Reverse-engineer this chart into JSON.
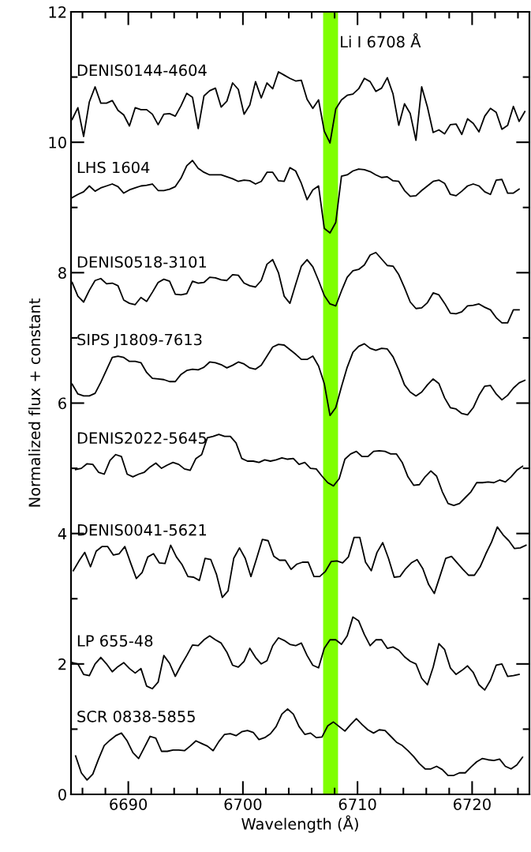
{
  "chart_data": {
    "type": "line",
    "xlabel": "Wavelength (Å)",
    "ylabel": "Normalized flux + constant",
    "x": [
      6685.1,
      6685.6,
      6686.1,
      6686.6,
      6687.1,
      6687.6,
      6688.1,
      6688.6,
      6689.1,
      6689.6,
      6690.1,
      6690.6,
      6691.1,
      6691.6,
      6692.1,
      6692.6,
      6693.1,
      6693.6,
      6694.1,
      6694.6,
      6695.1,
      6695.6,
      6696.1,
      6696.6,
      6697.1,
      6697.6,
      6698.1,
      6698.6,
      6699.1,
      6699.6,
      6700.1,
      6700.6,
      6701.1,
      6701.6,
      6702.1,
      6702.6,
      6703.1,
      6703.6,
      6704.1,
      6704.6,
      6705.1,
      6705.6,
      6706.1,
      6706.6,
      6707.1,
      6707.6,
      6708.1,
      6708.6,
      6709.1,
      6709.6,
      6710.1,
      6710.6,
      6711.1,
      6711.6,
      6712.1,
      6712.6,
      6713.1,
      6713.6,
      6714.1,
      6714.6,
      6715.1,
      6715.6,
      6716.1,
      6716.6,
      6717.1,
      6717.6,
      6718.1,
      6718.6,
      6719.1,
      6719.6,
      6720.1,
      6720.6,
      6721.1,
      6721.6,
      6722.1,
      6722.6,
      6723.1,
      6723.6,
      6724.1,
      6724.6
    ],
    "series": [
      {
        "name": "DENIS0144-4604",
        "color": "#000000",
        "values": [
          10.35,
          10.53,
          10.09,
          10.62,
          10.85,
          10.6,
          10.6,
          10.64,
          10.49,
          10.42,
          10.25,
          10.53,
          10.5,
          10.5,
          10.43,
          10.27,
          10.43,
          10.44,
          10.4,
          10.56,
          10.75,
          10.69,
          10.21,
          10.71,
          10.79,
          10.83,
          10.54,
          10.63,
          10.91,
          10.81,
          10.43,
          10.57,
          10.93,
          10.68,
          10.91,
          10.82,
          11.08,
          11.03,
          10.98,
          10.94,
          10.95,
          10.66,
          10.52,
          10.65,
          10.17,
          9.99,
          10.51,
          10.65,
          10.72,
          10.74,
          10.82,
          10.98,
          10.93,
          10.78,
          10.83,
          10.99,
          10.74,
          10.26,
          10.59,
          10.44,
          10.03,
          10.85,
          10.54,
          10.15,
          10.19,
          10.13,
          10.27,
          10.28,
          10.12,
          10.36,
          10.29,
          10.16,
          10.4,
          10.52,
          10.46,
          10.2,
          10.26,
          10.55,
          10.32,
          10.47
        ]
      },
      {
        "name": "LHS 1604",
        "color": "#000000",
        "values": [
          9.15,
          9.2,
          9.24,
          9.33,
          9.25,
          9.3,
          9.33,
          9.36,
          9.32,
          9.22,
          9.27,
          9.3,
          9.33,
          9.34,
          9.36,
          9.26,
          9.26,
          9.28,
          9.32,
          9.45,
          9.64,
          9.72,
          9.6,
          9.54,
          9.5,
          9.5,
          9.5,
          9.47,
          9.44,
          9.4,
          9.42,
          9.41,
          9.36,
          9.4,
          9.54,
          9.54,
          9.41,
          9.4,
          9.61,
          9.56,
          9.37,
          9.12,
          9.27,
          9.33,
          8.68,
          8.61,
          8.77,
          9.48,
          9.5,
          9.56,
          9.59,
          9.58,
          9.55,
          9.5,
          9.46,
          9.47,
          9.41,
          9.4,
          9.26,
          9.17,
          9.18,
          9.26,
          9.33,
          9.4,
          9.42,
          9.37,
          9.2,
          9.18,
          9.25,
          9.33,
          9.36,
          9.33,
          9.24,
          9.2,
          9.42,
          9.43,
          9.22,
          9.22,
          9.28,
          null
        ]
      },
      {
        "name": "DENIS0518-3101",
        "color": "#000000",
        "values": [
          7.85,
          7.64,
          7.55,
          7.73,
          7.88,
          7.91,
          7.83,
          7.84,
          7.8,
          7.58,
          7.53,
          7.51,
          7.62,
          7.56,
          7.7,
          7.85,
          7.9,
          7.87,
          7.67,
          7.66,
          7.68,
          7.87,
          7.84,
          7.85,
          7.93,
          7.92,
          7.89,
          7.88,
          7.97,
          7.96,
          7.84,
          7.8,
          7.78,
          7.88,
          8.13,
          8.2,
          8.0,
          7.64,
          7.53,
          7.82,
          8.1,
          8.2,
          8.09,
          7.88,
          7.65,
          7.52,
          7.49,
          7.72,
          7.93,
          8.03,
          8.05,
          8.12,
          8.27,
          8.31,
          8.21,
          8.11,
          8.1,
          7.97,
          7.77,
          7.55,
          7.45,
          7.46,
          7.54,
          7.69,
          7.66,
          7.53,
          7.38,
          7.37,
          7.4,
          7.49,
          7.5,
          7.52,
          7.47,
          7.43,
          7.31,
          7.23,
          7.23,
          7.43,
          7.43,
          null
        ]
      },
      {
        "name": "SIPS J1809-7613",
        "color": "#000000",
        "values": [
          6.29,
          6.14,
          6.11,
          6.11,
          6.15,
          6.32,
          6.51,
          6.7,
          6.72,
          6.7,
          6.64,
          6.64,
          6.62,
          6.47,
          6.38,
          6.37,
          6.36,
          6.33,
          6.33,
          6.44,
          6.5,
          6.52,
          6.51,
          6.55,
          6.63,
          6.62,
          6.59,
          6.54,
          6.58,
          6.63,
          6.6,
          6.54,
          6.52,
          6.58,
          6.72,
          6.86,
          6.9,
          6.89,
          6.82,
          6.75,
          6.67,
          6.67,
          6.72,
          6.57,
          6.3,
          5.81,
          5.93,
          6.25,
          6.55,
          6.78,
          6.87,
          6.91,
          6.84,
          6.81,
          6.84,
          6.83,
          6.71,
          6.51,
          6.28,
          6.17,
          6.11,
          6.17,
          6.28,
          6.37,
          6.3,
          6.08,
          5.93,
          5.91,
          5.84,
          5.82,
          5.93,
          6.12,
          6.26,
          6.27,
          6.14,
          6.05,
          6.12,
          6.23,
          6.31,
          6.35
        ]
      },
      {
        "name": "DENIS2022-5645",
        "color": "#000000",
        "x": [
          6685.4,
          6685.9,
          6686.4,
          6686.9,
          6687.4,
          6687.9,
          6688.4,
          6688.9,
          6689.4,
          6689.9,
          6690.4,
          6690.9,
          6691.4,
          6691.9,
          6692.4,
          6692.9,
          6693.4,
          6693.9,
          6694.4,
          6694.9,
          6695.4,
          6695.9,
          6696.4,
          6696.9,
          6697.4,
          6697.9,
          6698.4,
          6698.9,
          6699.4,
          6699.9,
          6700.4,
          6700.9,
          6701.4,
          6701.9,
          6702.4,
          6702.9,
          6703.4,
          6703.9,
          6704.4,
          6704.9,
          6705.4,
          6705.9,
          6706.4,
          6706.9,
          6707.4,
          6707.9,
          6708.4,
          6708.9,
          6709.4,
          6709.9,
          6710.4,
          6710.9,
          6711.4,
          6711.9,
          6712.4,
          6712.9,
          6713.4,
          6713.9,
          6714.4,
          6714.9,
          6715.4,
          6715.9,
          6716.4,
          6716.9,
          6717.4,
          6717.9,
          6718.4,
          6718.9,
          6719.4,
          6719.9,
          6720.4,
          6720.9,
          6721.4,
          6721.9,
          6722.4,
          6722.9,
          6723.4,
          6723.9,
          6724.4
        ],
        "values": [
          4.98,
          5.0,
          5.07,
          5.06,
          4.94,
          4.91,
          5.12,
          5.21,
          5.18,
          4.91,
          4.87,
          4.91,
          4.94,
          5.02,
          5.08,
          5.0,
          5.05,
          5.09,
          5.06,
          4.99,
          4.97,
          5.15,
          5.21,
          5.47,
          5.49,
          5.52,
          5.49,
          5.49,
          5.39,
          5.15,
          5.11,
          5.11,
          5.09,
          5.13,
          5.11,
          5.13,
          5.16,
          5.14,
          5.15,
          5.06,
          5.09,
          5.0,
          4.99,
          4.88,
          4.78,
          4.73,
          4.84,
          5.14,
          5.22,
          5.26,
          5.18,
          5.18,
          5.26,
          5.27,
          5.26,
          5.22,
          5.22,
          5.09,
          4.87,
          4.74,
          4.75,
          4.87,
          4.96,
          4.88,
          4.64,
          4.46,
          4.43,
          4.46,
          4.55,
          4.64,
          4.78,
          4.78,
          4.79,
          4.78,
          4.82,
          4.79,
          4.87,
          4.97,
          5.03
        ]
      },
      {
        "name": "DENIS0041-5621",
        "color": "#000000",
        "x": [
          6685.2,
          6685.7,
          6686.2,
          6686.7,
          6687.2,
          6687.7,
          6688.2,
          6688.7,
          6689.2,
          6689.7,
          6690.2,
          6690.7,
          6691.2,
          6691.7,
          6692.2,
          6692.7,
          6693.2,
          6693.7,
          6694.2,
          6694.7,
          6695.2,
          6695.7,
          6696.2,
          6696.7,
          6697.2,
          6697.7,
          6698.2,
          6698.7,
          6699.2,
          6699.7,
          6700.2,
          6700.7,
          6701.2,
          6701.7,
          6702.2,
          6702.7,
          6703.2,
          6703.7,
          6704.2,
          6704.7,
          6705.2,
          6705.7,
          6706.2,
          6706.7,
          6707.2,
          6707.7,
          6708.2,
          6708.7,
          6709.2,
          6709.7,
          6710.2,
          6710.7,
          6711.2,
          6711.7,
          6712.2,
          6712.7,
          6713.2,
          6713.7,
          6714.2,
          6714.7,
          6715.2,
          6715.7,
          6716.2,
          6716.7,
          6717.2,
          6717.7,
          6718.2,
          6718.7,
          6719.2,
          6719.7,
          6720.2,
          6720.7,
          6721.2,
          6721.7,
          6722.2,
          6722.7,
          6723.2,
          6723.7,
          6724.2,
          6724.7
        ],
        "values": [
          3.43,
          3.58,
          3.71,
          3.49,
          3.73,
          3.8,
          3.8,
          3.67,
          3.69,
          3.8,
          3.55,
          3.31,
          3.4,
          3.64,
          3.69,
          3.55,
          3.54,
          3.82,
          3.64,
          3.52,
          3.34,
          3.33,
          3.28,
          3.62,
          3.6,
          3.37,
          3.02,
          3.12,
          3.62,
          3.78,
          3.62,
          3.34,
          3.62,
          3.91,
          3.89,
          3.65,
          3.59,
          3.59,
          3.45,
          3.53,
          3.56,
          3.56,
          3.34,
          3.34,
          3.42,
          3.57,
          3.58,
          3.55,
          3.64,
          3.94,
          3.94,
          3.56,
          3.43,
          3.71,
          3.86,
          3.62,
          3.33,
          3.34,
          3.46,
          3.55,
          3.6,
          3.46,
          3.22,
          3.08,
          3.35,
          3.62,
          3.65,
          3.55,
          3.45,
          3.36,
          3.36,
          3.49,
          3.69,
          3.87,
          4.1,
          3.98,
          3.89,
          3.77,
          3.78,
          3.82
        ]
      },
      {
        "name": "LP 655-48",
        "color": "#000000",
        "values": [
          2.02,
          2.0,
          1.84,
          1.82,
          2.0,
          2.1,
          2.0,
          1.88,
          1.96,
          2.02,
          1.93,
          1.86,
          1.93,
          1.66,
          1.62,
          1.72,
          2.13,
          2.01,
          1.81,
          1.98,
          2.13,
          2.29,
          2.28,
          2.37,
          2.43,
          2.37,
          2.32,
          2.18,
          1.98,
          1.95,
          2.04,
          2.24,
          2.1,
          2.0,
          2.05,
          2.28,
          2.4,
          2.36,
          2.3,
          2.28,
          2.32,
          2.13,
          1.98,
          1.94,
          2.24,
          2.37,
          2.37,
          2.3,
          2.43,
          2.72,
          2.66,
          2.45,
          2.28,
          2.37,
          2.37,
          2.24,
          2.26,
          2.21,
          2.11,
          2.04,
          2.0,
          1.78,
          1.68,
          1.95,
          2.31,
          2.22,
          1.94,
          1.84,
          1.9,
          1.97,
          1.87,
          1.68,
          1.6,
          1.75,
          1.98,
          2.0,
          1.81,
          1.82,
          1.84,
          null
        ]
      },
      {
        "name": "SCR 0838-5855",
        "color": "#000000",
        "x": [
          6685.4,
          6685.9,
          6686.4,
          6686.9,
          6687.4,
          6687.9,
          6688.4,
          6688.9,
          6689.4,
          6689.9,
          6690.4,
          6690.9,
          6691.4,
          6691.9,
          6692.4,
          6692.9,
          6693.4,
          6693.9,
          6694.4,
          6694.9,
          6695.4,
          6695.9,
          6696.4,
          6696.9,
          6697.4,
          6697.9,
          6698.4,
          6698.9,
          6699.4,
          6699.9,
          6700.4,
          6700.9,
          6701.4,
          6701.9,
          6702.4,
          6702.9,
          6703.4,
          6703.9,
          6704.4,
          6704.9,
          6705.4,
          6705.9,
          6706.4,
          6706.9,
          6707.4,
          6707.9,
          6708.4,
          6708.9,
          6709.4,
          6709.9,
          6710.4,
          6710.9,
          6711.4,
          6711.9,
          6712.4,
          6712.9,
          6713.4,
          6713.9,
          6714.4,
          6714.9,
          6715.4,
          6715.9,
          6716.4,
          6716.9,
          6717.4,
          6717.9,
          6718.4,
          6718.9,
          6719.4,
          6719.9,
          6720.4,
          6720.9,
          6721.4,
          6721.9,
          6722.4,
          6722.9,
          6723.4,
          6723.9,
          6724.4
        ],
        "values": [
          0.59,
          0.33,
          0.22,
          0.31,
          0.54,
          0.75,
          0.83,
          0.9,
          0.94,
          0.82,
          0.64,
          0.55,
          0.72,
          0.89,
          0.86,
          0.66,
          0.66,
          0.68,
          0.68,
          0.67,
          0.74,
          0.82,
          0.78,
          0.74,
          0.67,
          0.81,
          0.92,
          0.93,
          0.9,
          0.96,
          0.98,
          0.95,
          0.84,
          0.87,
          0.93,
          1.04,
          1.23,
          1.31,
          1.23,
          1.04,
          0.92,
          0.94,
          0.87,
          0.88,
          1.05,
          1.11,
          1.04,
          0.97,
          1.07,
          1.16,
          1.07,
          0.99,
          0.94,
          0.99,
          0.98,
          0.89,
          0.8,
          0.75,
          0.67,
          0.58,
          0.47,
          0.39,
          0.39,
          0.43,
          0.38,
          0.29,
          0.29,
          0.33,
          0.33,
          0.42,
          0.5,
          0.55,
          0.53,
          0.52,
          0.54,
          0.43,
          0.39,
          0.45,
          0.57
        ]
      }
    ],
    "bands": [
      {
        "axis": "x",
        "from": 6707.0,
        "to": 6708.3,
        "label": "Li I 6708 Å",
        "color": "#7fff00"
      }
    ],
    "xlim": [
      6685,
      6725
    ],
    "ylim": [
      0,
      12
    ],
    "xticks": [
      {
        "value": 6686,
        "label": null
      },
      {
        "value": 6688,
        "label": null
      },
      6690,
      {
        "value": 6692,
        "label": null
      },
      {
        "value": 6694,
        "label": null
      },
      {
        "value": 6696,
        "label": null
      },
      {
        "value": 6698,
        "label": null
      },
      6700,
      {
        "value": 6702,
        "label": null
      },
      {
        "value": 6704,
        "label": null
      },
      {
        "value": 6706,
        "label": null
      },
      {
        "value": 6708,
        "label": null
      },
      6710,
      {
        "value": 6712,
        "label": null
      },
      {
        "value": 6714,
        "label": null
      },
      {
        "value": 6716,
        "label": null
      },
      {
        "value": 6718,
        "label": null
      },
      6720,
      {
        "value": 6722,
        "label": null
      },
      {
        "value": 6724,
        "label": null
      }
    ],
    "yticks": [
      0,
      {
        "value": 1,
        "label": null
      },
      2,
      {
        "value": 3,
        "label": null
      },
      4,
      {
        "value": 5,
        "label": null
      },
      6,
      {
        "value": 7,
        "label": null
      },
      8,
      {
        "value": 9,
        "label": null
      },
      10,
      {
        "value": 11,
        "label": null
      },
      12
    ],
    "grid": false,
    "legend": false,
    "marker": "none",
    "line_style": "solid"
  }
}
